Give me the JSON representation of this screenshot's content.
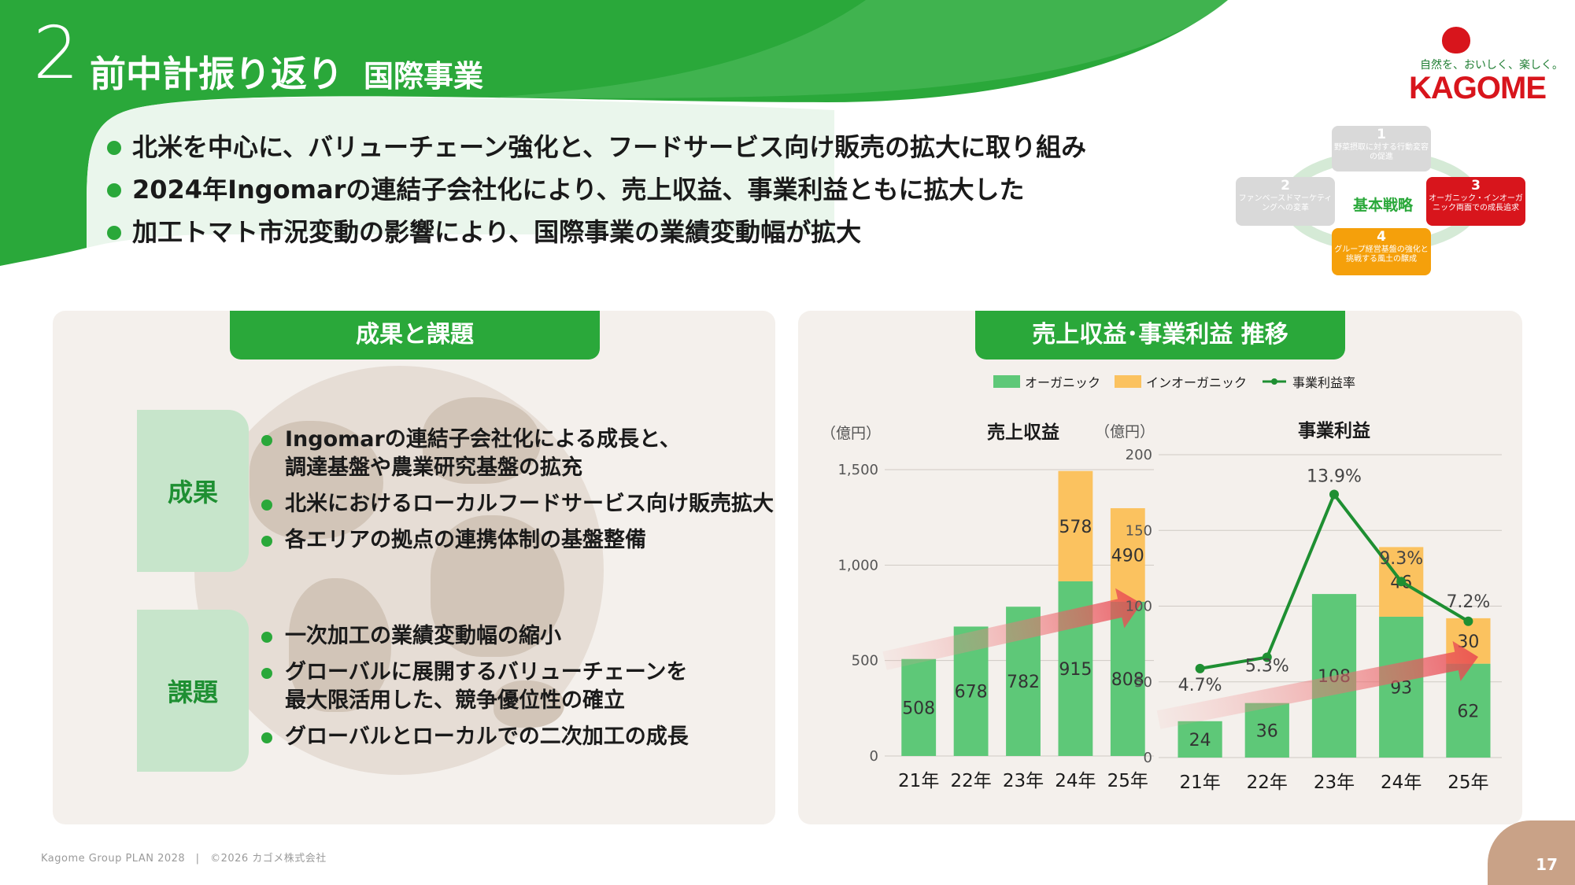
{
  "header": {
    "section_number": "2",
    "title": "前中計振り返り",
    "subtitle": "国際事業",
    "bullets": [
      "北米を中心に、バリューチェーン強化と、フードサービス向け販売の拡大に取り組み",
      "2024年Ingomarの連結子会社化により、売上収益、事業利益ともに拡大した",
      "加工トマト市況変動の影響により、国際事業の業績変動幅が拡大"
    ],
    "header_color": "#2aa83a"
  },
  "logo": {
    "tagline": "自然を、おいしく、楽しく。",
    "wordmark": "KAGOME"
  },
  "strategy": {
    "center": "基本戦略",
    "items": [
      {
        "num": "1",
        "text": "野菜摂取に対する行動変容の促進",
        "color": "#d9d9d9"
      },
      {
        "num": "2",
        "text": "ファンベースドマーケティングへの変革",
        "color": "#d9d9d9"
      },
      {
        "num": "3",
        "text": "オーガニック・インオーガニック両面での成長追求",
        "color": "#d8151c"
      },
      {
        "num": "4",
        "text": "グループ経営基盤の強化と挑戦する風土の醸成",
        "color": "#f5a00b"
      }
    ]
  },
  "left_panel": {
    "title": "成果と課題",
    "results": {
      "label": "成果",
      "items": [
        [
          "Ingomarの連結子会社化による成長と、",
          "調達基盤や農業研究基盤の拡充"
        ],
        [
          "北米におけるローカルフードサービス向け販売拡大"
        ],
        [
          "各エリアの拠点の連携体制の基盤整備"
        ]
      ]
    },
    "issues": {
      "label": "課題",
      "items": [
        [
          "一次加工の業績変動幅の縮小"
        ],
        [
          "グローバルに展開するバリューチェーンを",
          "最大限活用した、競争優位性の確立"
        ],
        [
          "グローバルとローカルでの二次加工の成長"
        ]
      ]
    }
  },
  "right_panel": {
    "title": "売上収益･事業利益  推移",
    "legend": {
      "organic": "オーガニック",
      "inorganic": "インオーガニック",
      "margin": "事業利益率"
    }
  },
  "chart_data": [
    {
      "type": "bar",
      "title": "売上収益",
      "ylabel": "（億円）",
      "categories": [
        "21年",
        "22年",
        "23年",
        "24年",
        "25年"
      ],
      "series": [
        {
          "name": "オーガニック",
          "values": [
            508,
            678,
            782,
            915,
            808
          ],
          "color": "#5ec878"
        },
        {
          "name": "インオーガニック",
          "values": [
            0,
            0,
            0,
            578,
            490
          ],
          "color": "#fbc25f"
        }
      ],
      "ylim": [
        0,
        1500
      ],
      "yticks": [
        0,
        500,
        1000,
        1500
      ],
      "ytick_labels": [
        "0",
        "500",
        "1,000",
        "1,500"
      ],
      "stacked": true
    },
    {
      "type": "bar",
      "title": "事業利益",
      "ylabel": "（億円）",
      "categories": [
        "21年",
        "22年",
        "23年",
        "24年",
        "25年"
      ],
      "series": [
        {
          "name": "オーガニック",
          "values": [
            24,
            36,
            108,
            93,
            62
          ],
          "color": "#5ec878"
        },
        {
          "name": "インオーガニック",
          "values": [
            0,
            0,
            0,
            46,
            30
          ],
          "color": "#fbc25f"
        }
      ],
      "line_series": {
        "name": "事業利益率",
        "values": [
          4.7,
          5.3,
          13.9,
          9.3,
          7.2
        ],
        "labels": [
          "4.7%",
          "5.3%",
          "13.9%",
          "9.3%",
          "7.2%"
        ],
        "color": "#1e8f32",
        "ylim": [
          0,
          16
        ]
      },
      "ylim": [
        0,
        200
      ],
      "yticks": [
        0,
        50,
        100,
        150,
        200
      ],
      "ytick_labels": [
        "0",
        "50",
        "100",
        "150",
        "200"
      ],
      "stacked": true
    }
  ],
  "footer": {
    "left": "Kagome Group PLAN 2028　|　©2026 カゴメ株式会社",
    "page": "17"
  }
}
